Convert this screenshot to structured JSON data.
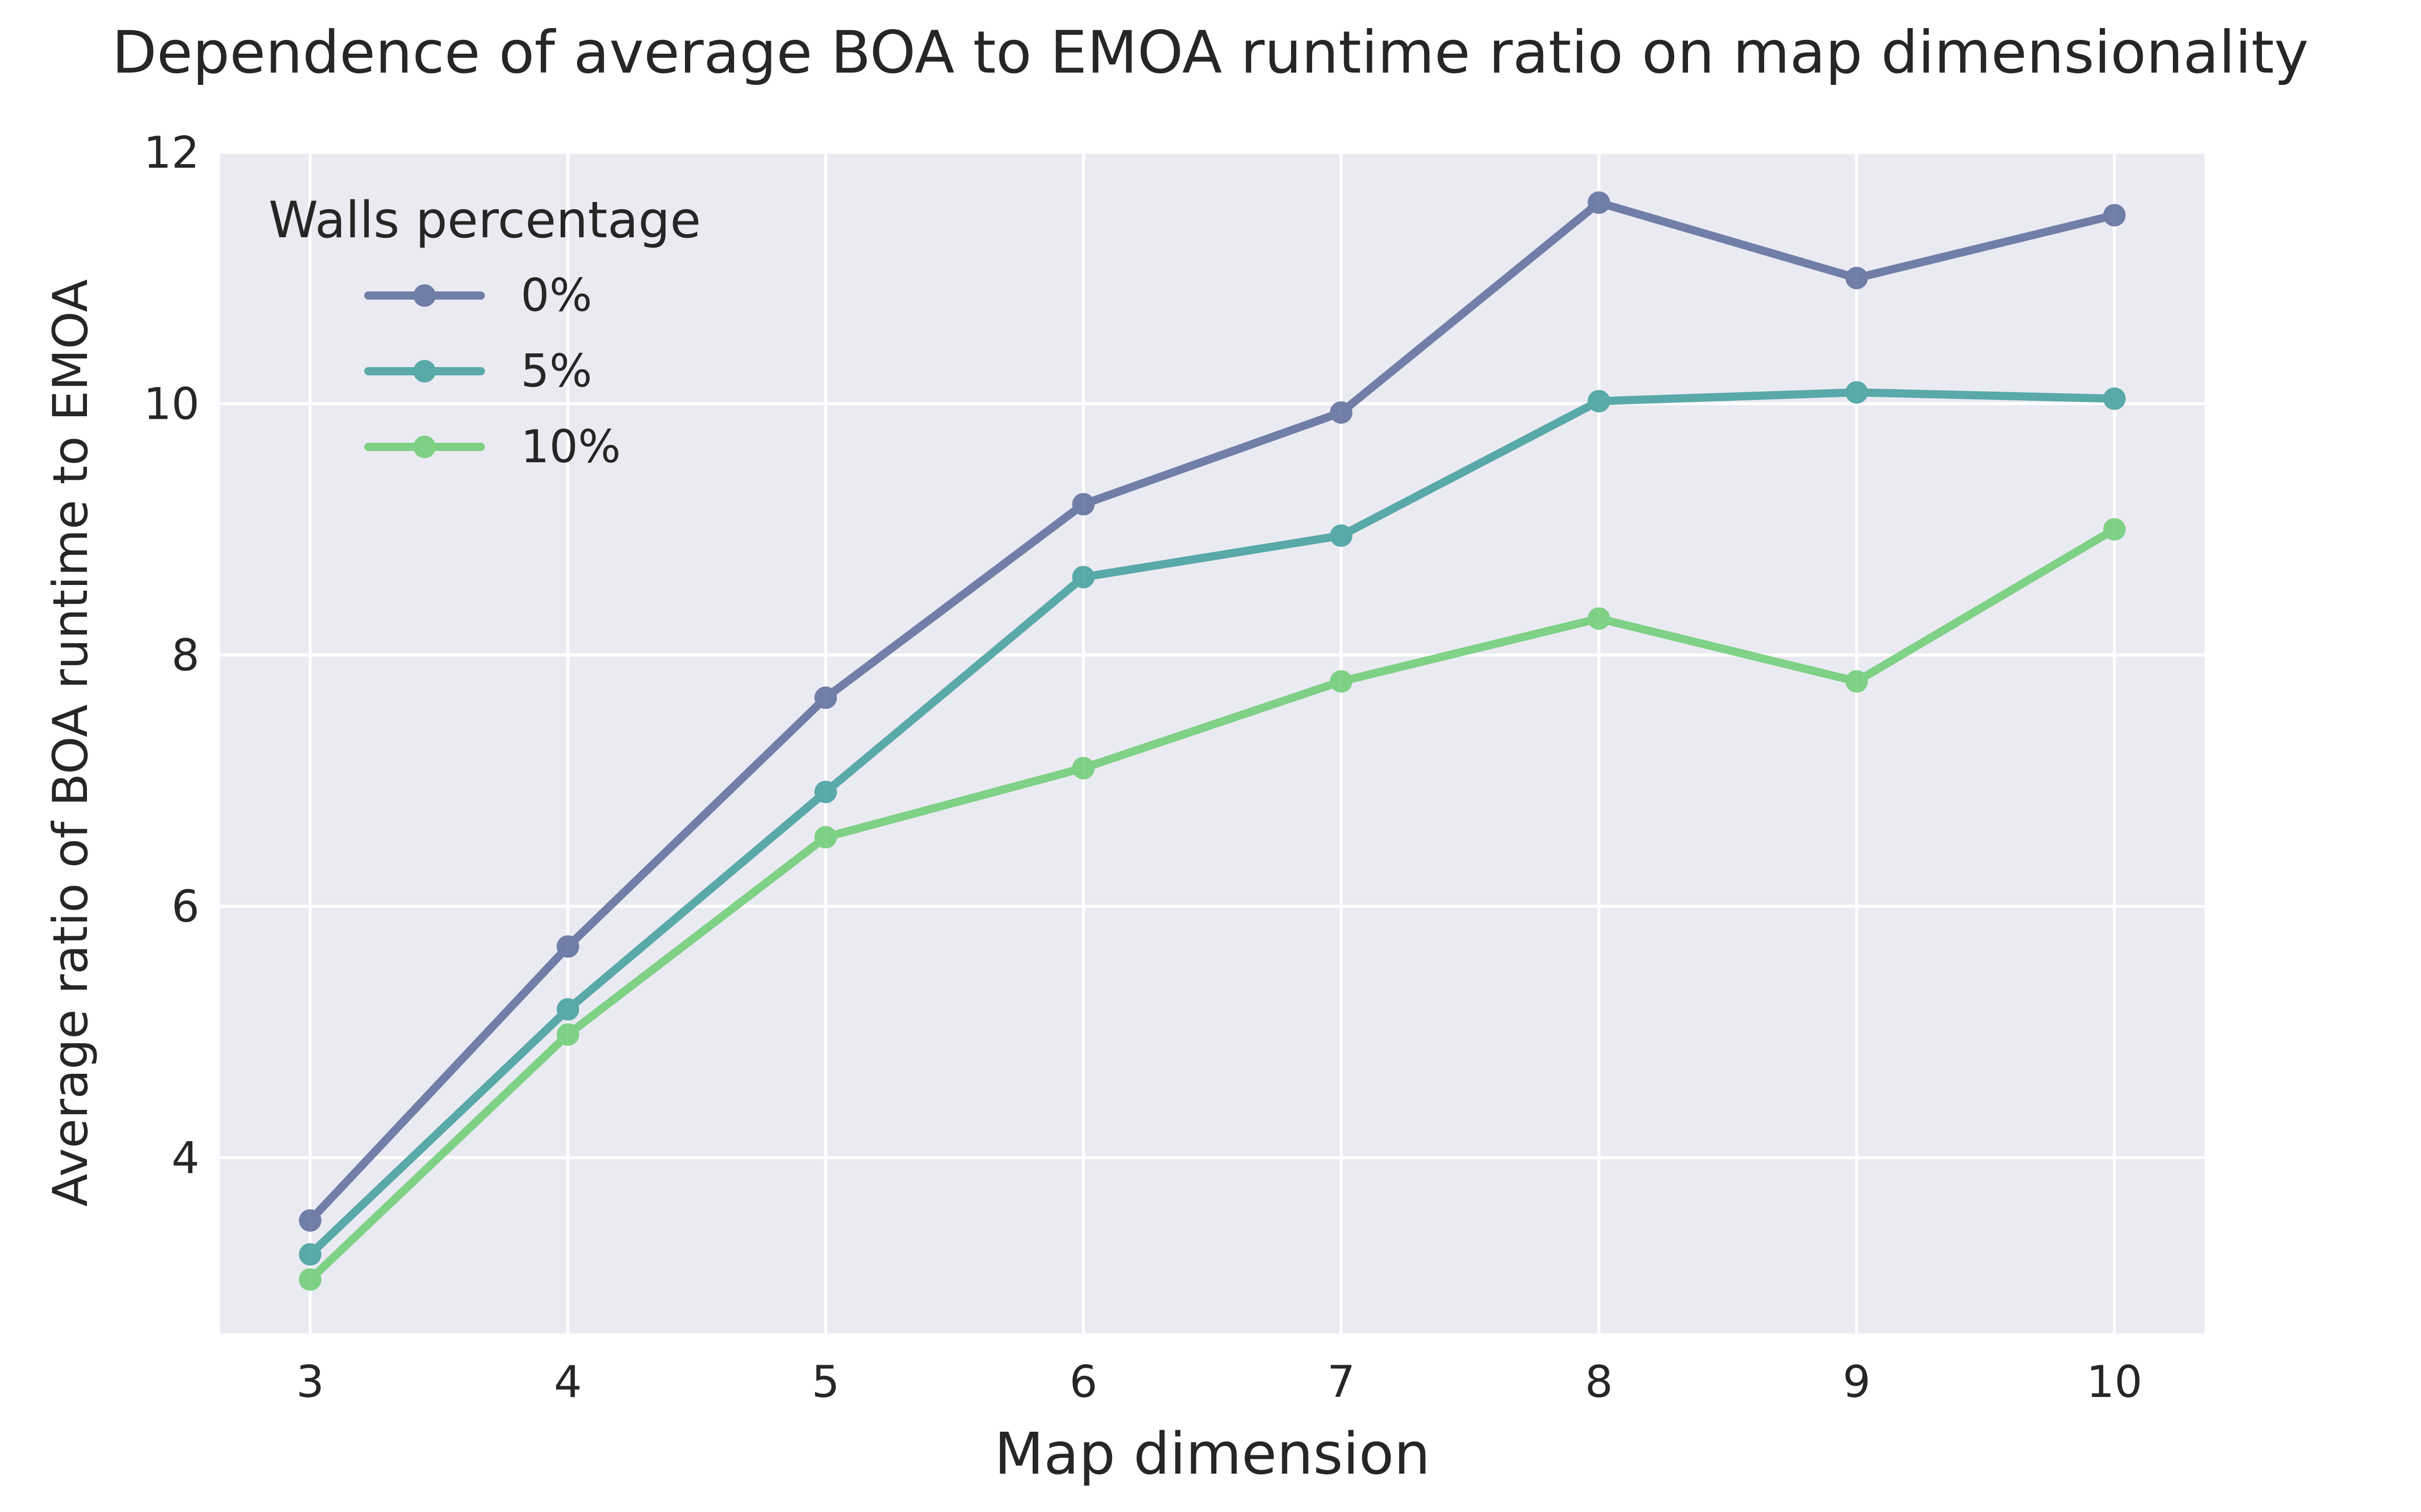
{
  "chart_data": {
    "type": "line",
    "title": "Dependence of average BOA to EMOA runtime ratio on map dimensionality",
    "xlabel": "Map dimension",
    "ylabel": "Average ratio of BOA runtime to EMOA",
    "x": [
      3,
      4,
      5,
      6,
      7,
      8,
      9,
      10
    ],
    "xlim": [
      2.65,
      10.35
    ],
    "ylim": [
      2.6,
      12.0
    ],
    "xticks": [
      3,
      4,
      5,
      6,
      7,
      8,
      9,
      10
    ],
    "yticks": [
      4,
      6,
      8,
      10,
      12
    ],
    "grid": true,
    "background": "#eaeaf2",
    "legend": {
      "title": "Walls percentage",
      "placement": "upper-left"
    },
    "series": [
      {
        "name": "0%",
        "color": "#5b6b9b",
        "values": [
          3.5,
          5.68,
          7.66,
          9.2,
          9.93,
          11.6,
          11.0,
          11.5
        ]
      },
      {
        "name": "5%",
        "color": "#3f9e9b",
        "values": [
          3.23,
          5.18,
          6.91,
          8.62,
          8.95,
          10.02,
          10.09,
          10.04
        ]
      },
      {
        "name": "10%",
        "color": "#6ccc73",
        "values": [
          3.03,
          4.98,
          6.55,
          7.1,
          7.79,
          8.29,
          7.79,
          9.0
        ]
      }
    ]
  }
}
